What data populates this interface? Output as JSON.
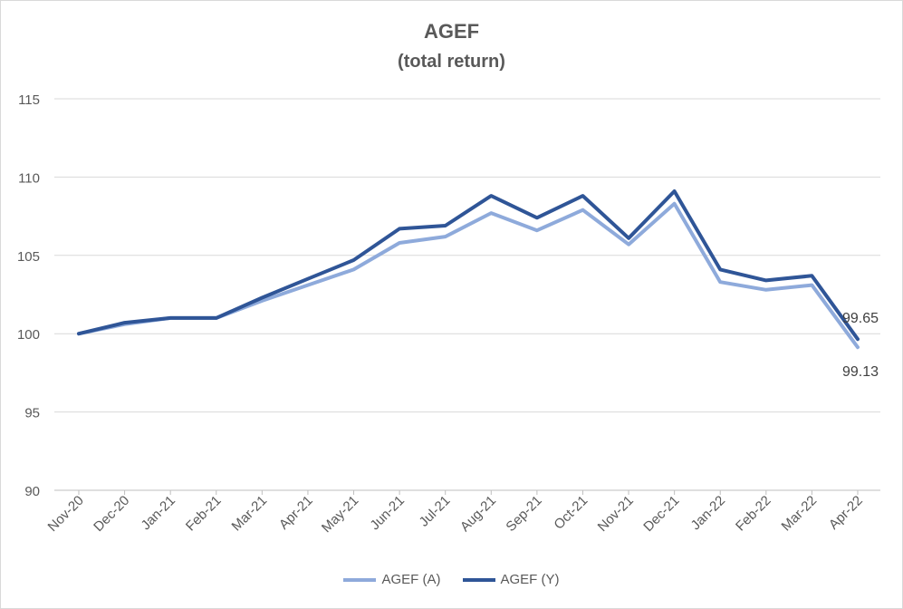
{
  "chart_data": {
    "type": "line",
    "title": "AGEF",
    "subtitle": "(total return)",
    "xlabel": "",
    "ylabel": "",
    "ylim": [
      90,
      115
    ],
    "yticks": [
      90,
      95,
      100,
      105,
      110,
      115
    ],
    "grid": true,
    "legend_position": "bottom",
    "categories": [
      "Nov-20",
      "Dec-20",
      "Jan-21",
      "Feb-21",
      "Mar-21",
      "Apr-21",
      "May-21",
      "Jun-21",
      "Jul-21",
      "Aug-21",
      "Sep-21",
      "Oct-21",
      "Nov-21",
      "Dec-21",
      "Jan-22",
      "Feb-22",
      "Mar-22",
      "Apr-22"
    ],
    "series": [
      {
        "name": "AGEF (A)",
        "color": "#8eaadb",
        "values": [
          100.0,
          100.6,
          101.0,
          101.0,
          102.1,
          103.1,
          104.1,
          105.8,
          106.2,
          107.7,
          106.6,
          107.9,
          105.7,
          108.3,
          103.3,
          102.8,
          103.1,
          99.13
        ],
        "end_label": "99.13"
      },
      {
        "name": "AGEF (Y)",
        "color": "#2f5597",
        "values": [
          100.0,
          100.7,
          101.0,
          101.0,
          102.3,
          103.5,
          104.7,
          106.7,
          106.9,
          108.8,
          107.4,
          108.8,
          106.1,
          109.1,
          104.1,
          103.4,
          103.7,
          99.65
        ],
        "end_label": "99.65"
      }
    ]
  }
}
